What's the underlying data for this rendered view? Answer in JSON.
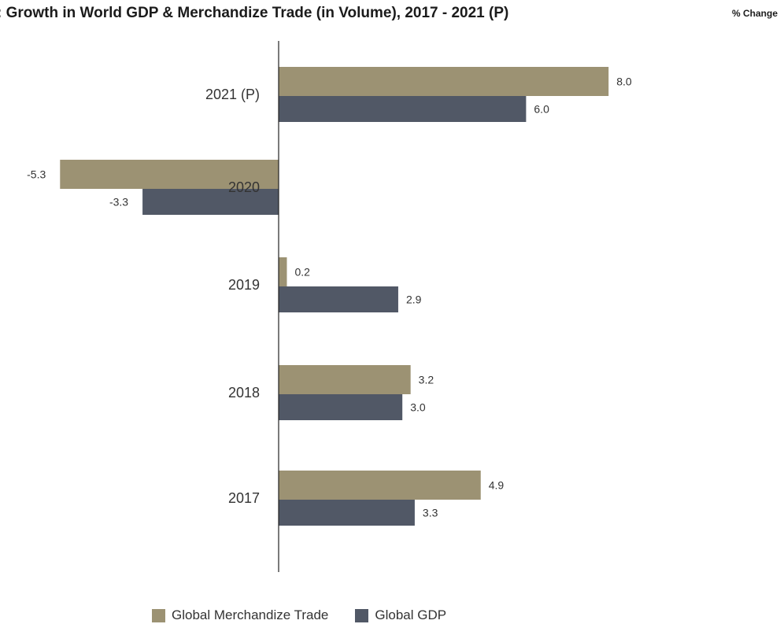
{
  "title": ": Growth in World GDP & Merchandize Trade (in Volume), 2017 - 2021 (P)",
  "unit_label": "% Change",
  "chart_data": {
    "type": "bar",
    "orientation": "horizontal",
    "categories": [
      "2021 (P)",
      "2020",
      "2019",
      "2018",
      "2017"
    ],
    "series": [
      {
        "name": "Global Merchandize Trade",
        "color": "#9c9273",
        "values": [
          8.0,
          -5.3,
          0.2,
          3.2,
          4.9
        ]
      },
      {
        "name": "Global GDP",
        "color": "#515866",
        "values": [
          6.0,
          -3.3,
          2.9,
          3.0,
          3.3
        ]
      }
    ],
    "value_labels": [
      [
        "8.0",
        "-5.3",
        "0.2",
        "3.2",
        "4.9"
      ],
      [
        "6.0",
        "-3.3",
        "2.9",
        "3.0",
        "3.3"
      ]
    ],
    "legend_position": "bottom",
    "grid": false
  }
}
